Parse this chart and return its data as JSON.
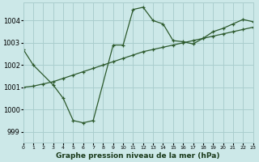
{
  "title": "Graphe pression niveau de la mer (hPa)",
  "bg_color": "#cce8e8",
  "grid_color": "#aacece",
  "line_color": "#2d5a2d",
  "x_min": 0,
  "x_max": 23,
  "y_min": 998.5,
  "y_max": 1004.8,
  "yticks": [
    999,
    1000,
    1001,
    1002,
    1003,
    1004
  ],
  "xticks": [
    0,
    1,
    2,
    3,
    4,
    5,
    6,
    7,
    8,
    9,
    10,
    11,
    12,
    13,
    14,
    15,
    16,
    17,
    18,
    19,
    20,
    21,
    22,
    23
  ],
  "series1_x": [
    0,
    1,
    3,
    4,
    5,
    6,
    7,
    9,
    10,
    11,
    12,
    13,
    14,
    15,
    16,
    17,
    18,
    19,
    20,
    21,
    22,
    23
  ],
  "series1_y": [
    1002.7,
    1002.0,
    1001.1,
    1000.5,
    999.5,
    999.4,
    999.5,
    1002.9,
    1002.9,
    1004.5,
    1004.6,
    1004.0,
    1003.85,
    1003.1,
    1003.05,
    1002.95,
    1003.2,
    1003.5,
    1003.65,
    1003.85,
    1004.05,
    1003.95
  ],
  "series2_x": [
    0,
    1,
    2,
    3,
    4,
    5,
    6,
    7,
    8,
    9,
    10,
    11,
    12,
    13,
    14,
    15,
    16,
    17,
    18,
    19,
    20,
    21,
    22,
    23
  ],
  "series2_y": [
    1001.0,
    1001.05,
    1001.15,
    1001.25,
    1001.4,
    1001.55,
    1001.7,
    1001.85,
    1002.0,
    1002.15,
    1002.3,
    1002.45,
    1002.6,
    1002.7,
    1002.8,
    1002.9,
    1003.0,
    1003.1,
    1003.2,
    1003.3,
    1003.4,
    1003.5,
    1003.6,
    1003.7
  ]
}
